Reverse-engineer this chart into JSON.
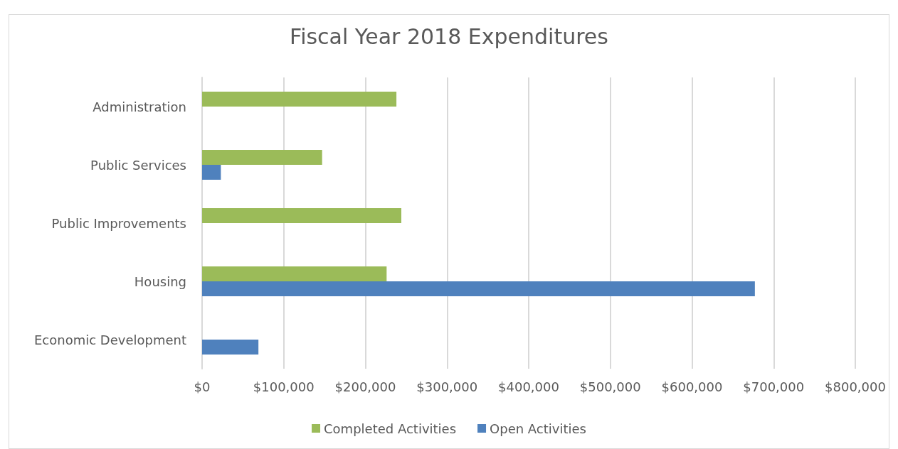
{
  "chart_data": {
    "type": "bar",
    "orientation": "horizontal",
    "title": "Fiscal Year 2018 Expenditures",
    "categories": [
      "Administration",
      "Public Services",
      "Public Improvements",
      "Housing",
      "Economic Development"
    ],
    "series": [
      {
        "name": "Completed Activities",
        "color": "#9bbb59",
        "values": [
          238000,
          147000,
          244000,
          226000,
          null
        ]
      },
      {
        "name": "Open Activities",
        "color": "#4f81bd",
        "values": [
          null,
          23000,
          null,
          677000,
          69000
        ]
      }
    ],
    "xlim": [
      0,
      800000
    ],
    "xticks": [
      {
        "value": 0,
        "label": "$0"
      },
      {
        "value": 100000,
        "label": "$100,000"
      },
      {
        "value": 200000,
        "label": "$200,000"
      },
      {
        "value": 300000,
        "label": "$300,000"
      },
      {
        "value": 400000,
        "label": "$400,000"
      },
      {
        "value": 500000,
        "label": "$500,000"
      },
      {
        "value": 600000,
        "label": "$600,000"
      },
      {
        "value": 700000,
        "label": "$700,000"
      },
      {
        "value": 800000,
        "label": "$800,000"
      }
    ],
    "grid": "x",
    "legend": "bottom"
  }
}
